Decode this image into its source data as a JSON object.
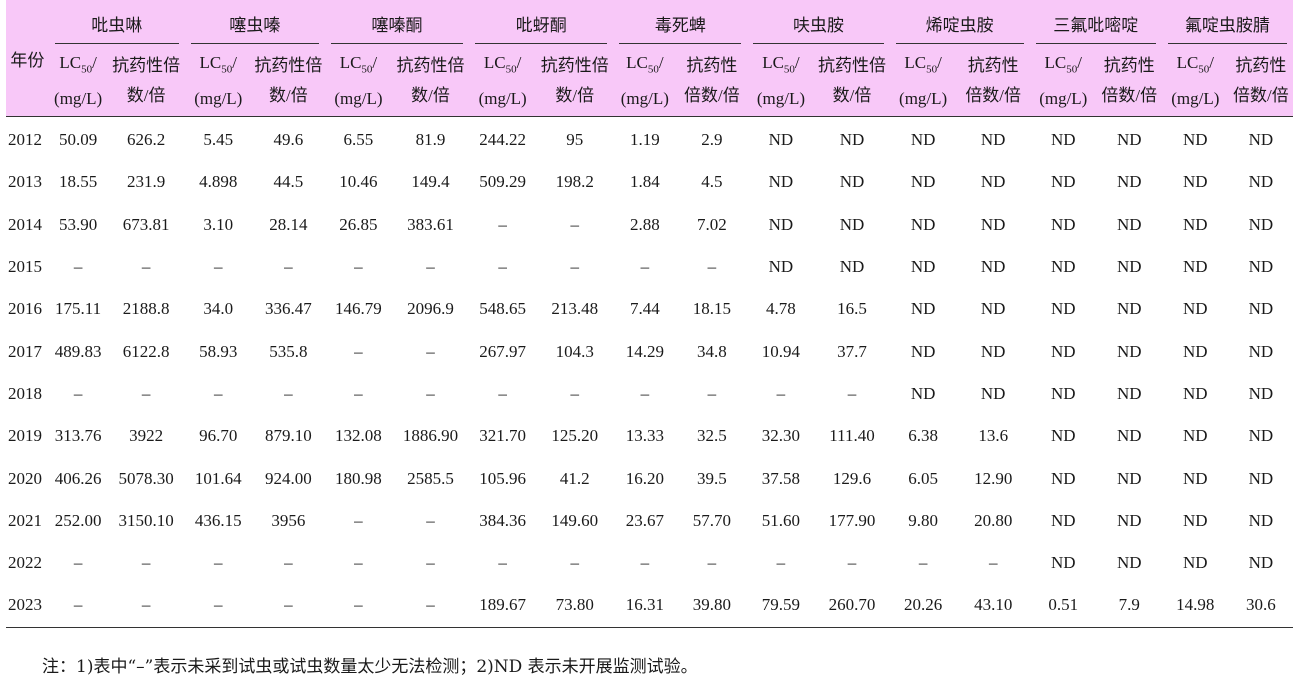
{
  "header": {
    "year_label": "年份",
    "groups": [
      "吡虫啉",
      "噻虫嗪",
      "噻嗪酮",
      "吡蚜酮",
      "毒死蜱",
      "呋虫胺",
      "烯啶虫胺",
      "三氟吡嘧啶",
      "氟啶虫胺腈"
    ],
    "sub": [
      [
        "LC50/ (mg/L)",
        "抗药性倍 数/倍"
      ],
      [
        "LC50/ (mg/L)",
        "抗药性倍 数/倍"
      ],
      [
        "LC50/ (mg/L)",
        "抗药性倍 数/倍"
      ],
      [
        "LC50/ (mg/L)",
        "抗药性倍 数/倍"
      ],
      [
        "LC50/ (mg/L)",
        "抗药性 倍数/倍"
      ],
      [
        "LC50/ (mg/L)",
        "抗药性倍 数/倍"
      ],
      [
        "LC50/ (mg/L)",
        "抗药性 倍数/倍"
      ],
      [
        "LC50/ (mg/L)",
        "抗药性 倍数/倍"
      ],
      [
        "LC50/ (mg/L)",
        "抗药性 倍数/倍"
      ]
    ]
  },
  "rows": [
    [
      "2012",
      "50.09",
      "626.2",
      "5.45",
      "49.6",
      "6.55",
      "81.9",
      "244.22",
      "95",
      "1.19",
      "2.9",
      "ND",
      "ND",
      "ND",
      "ND",
      "ND",
      "ND",
      "ND",
      "ND"
    ],
    [
      "2013",
      "18.55",
      "231.9",
      "4.898",
      "44.5",
      "10.46",
      "149.4",
      "509.29",
      "198.2",
      "1.84",
      "4.5",
      "ND",
      "ND",
      "ND",
      "ND",
      "ND",
      "ND",
      "ND",
      "ND"
    ],
    [
      "2014",
      "53.90",
      "673.81",
      "3.10",
      "28.14",
      "26.85",
      "383.61",
      "–",
      "–",
      "2.88",
      "7.02",
      "ND",
      "ND",
      "ND",
      "ND",
      "ND",
      "ND",
      "ND",
      "ND"
    ],
    [
      "2015",
      "–",
      "–",
      "–",
      "–",
      "–",
      "–",
      "–",
      "–",
      "–",
      "–",
      "ND",
      "ND",
      "ND",
      "ND",
      "ND",
      "ND",
      "ND",
      "ND"
    ],
    [
      "2016",
      "175.11",
      "2188.8",
      "34.0",
      "336.47",
      "146.79",
      "2096.9",
      "548.65",
      "213.48",
      "7.44",
      "18.15",
      "4.78",
      "16.5",
      "ND",
      "ND",
      "ND",
      "ND",
      "ND",
      "ND"
    ],
    [
      "2017",
      "489.83",
      "6122.8",
      "58.93",
      "535.8",
      "–",
      "–",
      "267.97",
      "104.3",
      "14.29",
      "34.8",
      "10.94",
      "37.7",
      "ND",
      "ND",
      "ND",
      "ND",
      "ND",
      "ND"
    ],
    [
      "2018",
      "–",
      "–",
      "–",
      "–",
      "–",
      "–",
      "–",
      "–",
      "–",
      "–",
      "–",
      "–",
      "ND",
      "ND",
      "ND",
      "ND",
      "ND",
      "ND"
    ],
    [
      "2019",
      "313.76",
      "3922",
      "96.70",
      "879.10",
      "132.08",
      "1886.90",
      "321.70",
      "125.20",
      "13.33",
      "32.5",
      "32.30",
      "111.40",
      "6.38",
      "13.6",
      "ND",
      "ND",
      "ND",
      "ND"
    ],
    [
      "2020",
      "406.26",
      "5078.30",
      "101.64",
      "924.00",
      "180.98",
      "2585.5",
      "105.96",
      "41.2",
      "16.20",
      "39.5",
      "37.58",
      "129.6",
      "6.05",
      "12.90",
      "ND",
      "ND",
      "ND",
      "ND"
    ],
    [
      "2021",
      "252.00",
      "3150.10",
      "436.15",
      "3956",
      "–",
      "–",
      "384.36",
      "149.60",
      "23.67",
      "57.70",
      "51.60",
      "177.90",
      "9.80",
      "20.80",
      "ND",
      "ND",
      "ND",
      "ND"
    ],
    [
      "2022",
      "–",
      "–",
      "–",
      "–",
      "–",
      "–",
      "–",
      "–",
      "–",
      "–",
      "–",
      "–",
      "–",
      "–",
      "ND",
      "ND",
      "ND",
      "ND"
    ],
    [
      "2023",
      "–",
      "–",
      "–",
      "–",
      "–",
      "–",
      "189.67",
      "73.80",
      "16.31",
      "39.80",
      "79.59",
      "260.70",
      "20.26",
      "43.10",
      "0.51",
      "7.9",
      "14.98",
      "30.6"
    ]
  ],
  "note": "注：1)表中“–”表示未采到试虫或试虫数量太少无法检测；2)ND 表示未开展监测试验。"
}
